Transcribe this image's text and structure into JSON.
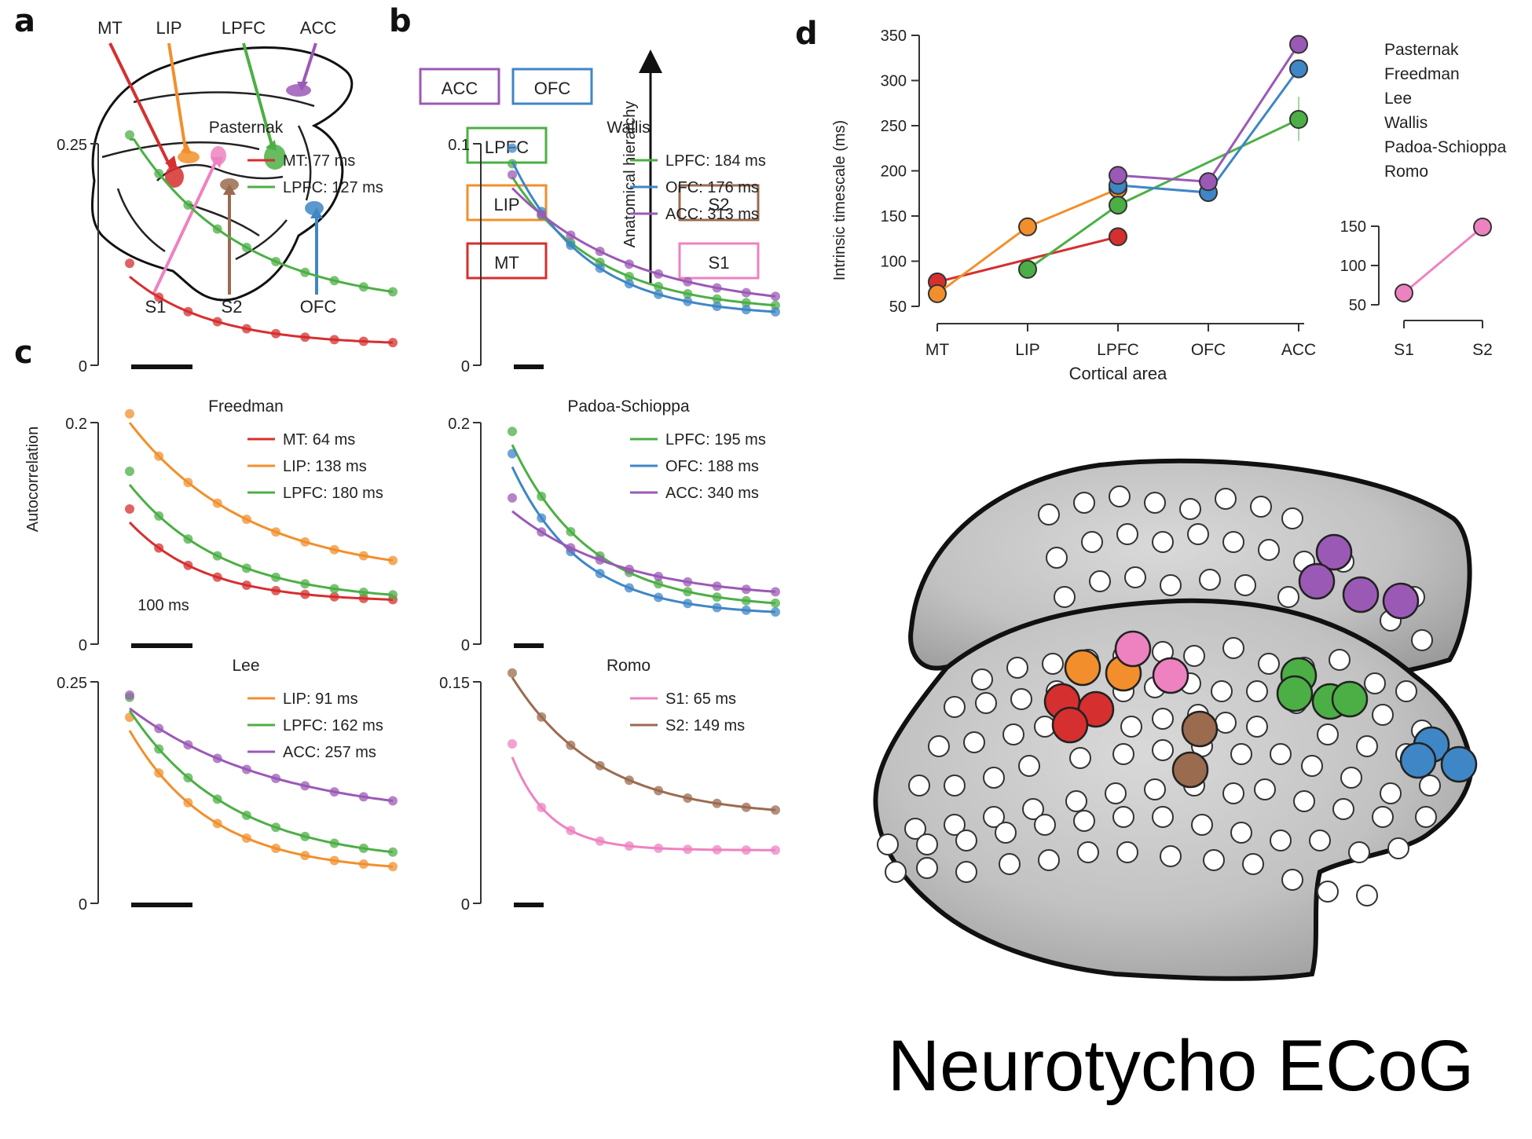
{
  "colors": {
    "MT": "#d62f2f",
    "LIP": "#f28f2c",
    "LPFC": "#4caf45",
    "ACC": "#9b59b6",
    "OFC": "#3f86c6",
    "S1": "#ee82c0",
    "S2": "#9b6b4f"
  },
  "panel_letters": [
    "a",
    "b",
    "c",
    "d"
  ],
  "panel_a": {
    "labels": [
      "MT",
      "LIP",
      "LPFC",
      "ACC",
      "S1",
      "S2",
      "OFC"
    ]
  },
  "panel_b": {
    "boxes": [
      "ACC",
      "OFC",
      "LPFC",
      "LIP",
      "MT",
      "S2",
      "S1"
    ],
    "axis_label": "Anatomical hierarchy"
  },
  "panel_c": {
    "ylabel": "Autocorrelation",
    "scalebar_label": "100 ms",
    "subplots": [
      {
        "title": "Pasternak",
        "ytop": "0.25",
        "ybottom": "0",
        "legend": [
          {
            "area": "MT",
            "text": "MT: 77 ms"
          },
          {
            "area": "LPFC",
            "text": "LPFC: 127 ms"
          }
        ]
      },
      {
        "title": "Wallis",
        "ytop": "0.1",
        "ybottom": "0",
        "legend": [
          {
            "area": "LPFC",
            "text": "LPFC: 184 ms"
          },
          {
            "area": "OFC",
            "text": "OFC: 176 ms"
          },
          {
            "area": "ACC",
            "text": "ACC: 313 ms"
          }
        ]
      },
      {
        "title": "Freedman",
        "ytop": "0.2",
        "ybottom": "0",
        "legend": [
          {
            "area": "MT",
            "text": "MT: 64 ms"
          },
          {
            "area": "LIP",
            "text": "LIP: 138 ms"
          },
          {
            "area": "LPFC",
            "text": "LPFC: 180 ms"
          }
        ]
      },
      {
        "title": "Padoa-Schioppa",
        "ytop": "0.2",
        "ybottom": "0",
        "legend": [
          {
            "area": "LPFC",
            "text": "LPFC: 195 ms"
          },
          {
            "area": "OFC",
            "text": "OFC: 188 ms"
          },
          {
            "area": "ACC",
            "text": "ACC: 340 ms"
          }
        ]
      },
      {
        "title": "Lee",
        "ytop": "0.25",
        "ybottom": "0",
        "legend": [
          {
            "area": "LIP",
            "text": "LIP: 91 ms"
          },
          {
            "area": "LPFC",
            "text": "LPFC: 162 ms"
          },
          {
            "area": "ACC",
            "text": "ACC: 257 ms"
          }
        ]
      },
      {
        "title": "Romo",
        "ytop": "0.15",
        "ybottom": "0",
        "legend": [
          {
            "area": "S1",
            "text": "S1: 65 ms"
          },
          {
            "area": "S2",
            "text": "S2: 149 ms"
          }
        ]
      }
    ]
  },
  "chart_data": {
    "type": "line",
    "xlabel": "Cortical area",
    "ylabel": "Intrinsic timescale (ms)",
    "categories": [
      "MT",
      "LIP",
      "LPFC",
      "OFC",
      "ACC"
    ],
    "yticks": [
      "350",
      "300",
      "250",
      "200",
      "150",
      "100",
      "50"
    ],
    "ylim": [
      50,
      350
    ],
    "series": [
      {
        "name": "Pasternak",
        "area_values": {
          "MT": 77,
          "LPFC": 127
        }
      },
      {
        "name": "Freedman",
        "area_values": {
          "MT": 64,
          "LIP": 138,
          "LPFC": 180
        }
      },
      {
        "name": "Lee",
        "area_values": {
          "LIP": 91,
          "LPFC": 162,
          "ACC": 257
        }
      },
      {
        "name": "Wallis",
        "area_values": {
          "LPFC": 184,
          "OFC": 176,
          "ACC": 313
        }
      },
      {
        "name": "Padoa-Schioppa",
        "area_values": {
          "LPFC": 195,
          "OFC": 188,
          "ACC": 340
        }
      },
      {
        "name": "Romo",
        "area_values": {}
      }
    ],
    "series_colors": [
      "#d62f2f",
      "#f28f2c",
      "#4caf45",
      "#3f86c6",
      "#9b59b6",
      "#ee82c0"
    ],
    "inset": {
      "categories": [
        "S1",
        "S2"
      ],
      "values": [
        65,
        149
      ],
      "yticks": [
        "150",
        "100",
        "50"
      ],
      "ylim": [
        50,
        150
      ]
    }
  },
  "ecog": {
    "title": "Neurotycho ECoG"
  }
}
